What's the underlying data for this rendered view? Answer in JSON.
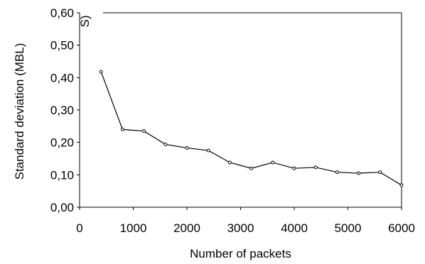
{
  "chart_data": {
    "type": "line",
    "title": "",
    "xlabel": "Number of packets",
    "ylabel": "Standard deviation (MBL)",
    "xlim": [
      0,
      6000
    ],
    "ylim": [
      0,
      0.6
    ],
    "xticks": [
      0,
      1000,
      2000,
      3000,
      4000,
      5000,
      6000
    ],
    "yticks": [
      0,
      0.1,
      0.2,
      0.3,
      0.4,
      0.5,
      0.6
    ],
    "xtick_labels": [
      "0",
      "1000",
      "2000",
      "3000",
      "4000",
      "5000",
      "6000"
    ],
    "ytick_labels": [
      "0,00",
      "0,10",
      "0,20",
      "0,30",
      "0,40",
      "0,50",
      "0,60"
    ],
    "grid": false,
    "legend": "none",
    "series": [
      {
        "name": "",
        "x": [
          400,
          800,
          1200,
          1600,
          2000,
          2400,
          2800,
          3200,
          3600,
          4000,
          4400,
          4800,
          5200,
          5600,
          6000
        ],
        "y": [
          0.418,
          0.24,
          0.235,
          0.194,
          0.183,
          0.175,
          0.138,
          0.12,
          0.138,
          0.12,
          0.123,
          0.108,
          0.105,
          0.108,
          0.068
        ]
      }
    ],
    "annotations": [
      "S)"
    ]
  }
}
